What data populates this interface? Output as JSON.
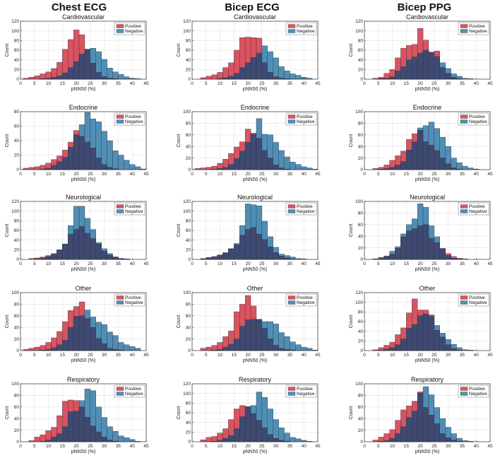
{
  "columns": [
    "Chest ECG",
    "Bicep ECG",
    "Bicep PPG"
  ],
  "colors": {
    "positive": "#d9545f",
    "negative": "#4f8fb5",
    "overlap": "#3e4a72",
    "edge": "#333344"
  },
  "chart_data": {
    "type": "histogram-grid",
    "xlabel": "pNN50 (%)",
    "ylabel": "Count",
    "legend": [
      "Positive",
      "Negative"
    ],
    "legend_position": "top-right",
    "xlim": [
      0,
      45
    ],
    "xticks": [
      0,
      5,
      10,
      15,
      20,
      25,
      30,
      35,
      40,
      45
    ],
    "bin_width": 2,
    "bin_starts": [
      1,
      3,
      5,
      7,
      9,
      11,
      13,
      15,
      17,
      19,
      21,
      23,
      25,
      27,
      29,
      31,
      33,
      35,
      37,
      39,
      41,
      43
    ],
    "panels": [
      {
        "column": "Chest ECG",
        "title": "Cardiovascular",
        "ylim": [
          0,
          120
        ],
        "yticks": [
          0,
          20,
          40,
          60,
          80,
          100,
          120
        ],
        "positive": [
          2,
          4,
          7,
          11,
          15,
          22,
          35,
          62,
          82,
          102,
          92,
          62,
          33,
          14,
          5,
          2,
          1,
          0,
          0,
          0,
          0,
          0
        ],
        "negative": [
          0,
          0,
          0,
          1,
          2,
          4,
          7,
          13,
          24,
          36,
          52,
          62,
          64,
          57,
          41,
          23,
          15,
          10,
          5,
          2,
          1,
          0
        ]
      },
      {
        "column": "Bicep ECG",
        "title": "Cardiovascular",
        "ylim": [
          0,
          120
        ],
        "yticks": [
          0,
          20,
          40,
          60,
          80,
          100,
          120
        ],
        "positive": [
          0,
          3,
          6,
          9,
          14,
          24,
          34,
          60,
          86,
          87,
          86,
          85,
          34,
          14,
          5,
          2,
          1,
          0,
          0,
          0,
          0,
          0
        ],
        "negative": [
          0,
          0,
          0,
          0,
          1,
          3,
          6,
          12,
          24,
          34,
          45,
          54,
          69,
          57,
          44,
          26,
          17,
          11,
          8,
          4,
          2,
          0
        ]
      },
      {
        "column": "Bicep PPG",
        "title": "Cardiovascular",
        "ylim": [
          0,
          120
        ],
        "yticks": [
          0,
          20,
          40,
          60,
          80,
          100,
          120
        ],
        "positive": [
          0,
          2,
          4,
          12,
          20,
          44,
          64,
          70,
          72,
          105,
          81,
          55,
          58,
          24,
          12,
          4,
          1,
          0,
          0,
          0,
          0,
          0
        ],
        "negative": [
          0,
          0,
          1,
          2,
          5,
          17,
          26,
          40,
          46,
          54,
          60,
          56,
          47,
          34,
          22,
          11,
          6,
          2,
          1,
          0,
          0,
          0
        ]
      },
      {
        "column": "Chest ECG",
        "title": "Endocrine",
        "ylim": [
          0,
          80
        ],
        "yticks": [
          0,
          20,
          40,
          60,
          80
        ],
        "positive": [
          2,
          3,
          4,
          6,
          9,
          14,
          19,
          27,
          38,
          54,
          46,
          38,
          30,
          16,
          7,
          3,
          1,
          0,
          0,
          0,
          0,
          0
        ],
        "negative": [
          0,
          0,
          0,
          1,
          2,
          6,
          11,
          17,
          31,
          48,
          62,
          79,
          70,
          66,
          53,
          40,
          26,
          20,
          13,
          7,
          4,
          1
        ]
      },
      {
        "column": "Bicep ECG",
        "title": "Endocrine",
        "ylim": [
          0,
          100
        ],
        "yticks": [
          0,
          20,
          40,
          60,
          80,
          100
        ],
        "positive": [
          2,
          3,
          4,
          6,
          11,
          18,
          28,
          39,
          48,
          70,
          63,
          54,
          33,
          20,
          8,
          3,
          1,
          0,
          0,
          0,
          0,
          0
        ],
        "negative": [
          0,
          0,
          0,
          1,
          2,
          4,
          9,
          19,
          32,
          47,
          61,
          88,
          61,
          60,
          47,
          33,
          22,
          13,
          9,
          5,
          3,
          1
        ]
      },
      {
        "column": "Bicep PPG",
        "title": "Endocrine",
        "ylim": [
          0,
          100
        ],
        "yticks": [
          0,
          20,
          40,
          60,
          80,
          100
        ],
        "positive": [
          0,
          2,
          4,
          8,
          16,
          24,
          32,
          52,
          62,
          68,
          48,
          42,
          33,
          20,
          10,
          3,
          1,
          0,
          0,
          0,
          0,
          0
        ],
        "negative": [
          0,
          0,
          1,
          2,
          4,
          8,
          14,
          34,
          48,
          72,
          76,
          82,
          71,
          56,
          40,
          20,
          12,
          6,
          3,
          1,
          0,
          0
        ]
      },
      {
        "column": "Chest ECG",
        "title": "Neurological",
        "ylim": [
          0,
          120
        ],
        "yticks": [
          0,
          20,
          40,
          60,
          80,
          100,
          120
        ],
        "positive": [
          0,
          2,
          3,
          5,
          8,
          12,
          19,
          31,
          52,
          62,
          68,
          54,
          43,
          32,
          17,
          9,
          5,
          2,
          1,
          0,
          0,
          0
        ],
        "negative": [
          0,
          0,
          1,
          3,
          6,
          11,
          20,
          32,
          70,
          110,
          110,
          85,
          62,
          35,
          22,
          12,
          5,
          2,
          1,
          0,
          0,
          0
        ]
      },
      {
        "column": "Bicep ECG",
        "title": "Neurological",
        "ylim": [
          0,
          120
        ],
        "yticks": [
          0,
          20,
          40,
          60,
          80,
          100,
          120
        ],
        "positive": [
          0,
          2,
          4,
          6,
          9,
          14,
          22,
          30,
          50,
          62,
          66,
          52,
          41,
          26,
          14,
          7,
          3,
          1,
          0,
          0,
          0,
          0
        ],
        "negative": [
          0,
          1,
          3,
          5,
          9,
          13,
          22,
          33,
          70,
          115,
          113,
          111,
          79,
          47,
          25,
          11,
          8,
          5,
          2,
          1,
          0,
          0
        ]
      },
      {
        "column": "Bicep PPG",
        "title": "Neurological",
        "ylim": [
          0,
          100
        ],
        "yticks": [
          0,
          20,
          40,
          60,
          80,
          100
        ],
        "positive": [
          0,
          1,
          3,
          6,
          9,
          19,
          39,
          49,
          53,
          58,
          60,
          36,
          29,
          19,
          10,
          5,
          2,
          1,
          0,
          0,
          0,
          0
        ],
        "negative": [
          0,
          1,
          3,
          5,
          14,
          22,
          44,
          60,
          70,
          96,
          90,
          58,
          39,
          18,
          7,
          2,
          1,
          0,
          0,
          0,
          0,
          0
        ]
      },
      {
        "column": "Chest ECG",
        "title": "Other",
        "ylim": [
          0,
          100
        ],
        "yticks": [
          0,
          20,
          40,
          60,
          80,
          100
        ],
        "positive": [
          2,
          4,
          6,
          9,
          14,
          22,
          33,
          50,
          69,
          76,
          84,
          55,
          40,
          21,
          12,
          4,
          2,
          1,
          0,
          0,
          0,
          0
        ],
        "negative": [
          0,
          0,
          0,
          1,
          2,
          5,
          10,
          18,
          40,
          59,
          60,
          70,
          58,
          49,
          45,
          32,
          26,
          14,
          10,
          7,
          4,
          0
        ]
      },
      {
        "column": "Bicep ECG",
        "title": "Other",
        "ylim": [
          0,
          100
        ],
        "yticks": [
          0,
          20,
          40,
          60,
          80,
          100
        ],
        "positive": [
          0,
          4,
          6,
          9,
          14,
          24,
          34,
          67,
          80,
          95,
          77,
          54,
          38,
          20,
          9,
          4,
          2,
          1,
          0,
          0,
          0,
          0
        ],
        "negative": [
          0,
          0,
          0,
          1,
          2,
          6,
          11,
          20,
          42,
          53,
          54,
          54,
          50,
          50,
          46,
          31,
          24,
          15,
          10,
          6,
          4,
          1
        ]
      },
      {
        "column": "Bicep PPG",
        "title": "Other",
        "ylim": [
          0,
          120
        ],
        "yticks": [
          0,
          20,
          40,
          60,
          80,
          100,
          120
        ],
        "positive": [
          0,
          2,
          6,
          11,
          17,
          33,
          47,
          78,
          107,
          84,
          84,
          74,
          42,
          28,
          12,
          4,
          1,
          0,
          0,
          0,
          0,
          0
        ],
        "negative": [
          0,
          0,
          1,
          3,
          6,
          12,
          24,
          46,
          54,
          72,
          76,
          71,
          52,
          36,
          23,
          13,
          6,
          2,
          1,
          0,
          0,
          0
        ]
      },
      {
        "column": "Chest ECG",
        "title": "Respiratory",
        "ylim": [
          0,
          100
        ],
        "yticks": [
          0,
          20,
          40,
          60,
          80,
          100
        ],
        "positive": [
          0,
          2,
          8,
          12,
          19,
          25,
          45,
          70,
          72,
          71,
          60,
          42,
          27,
          17,
          8,
          3,
          1,
          0,
          0,
          0,
          0,
          0
        ],
        "negative": [
          0,
          0,
          0,
          1,
          3,
          8,
          14,
          26,
          52,
          53,
          71,
          91,
          88,
          60,
          42,
          26,
          18,
          10,
          7,
          4,
          1,
          0
        ]
      },
      {
        "column": "Bicep ECG",
        "title": "Respiratory",
        "ylim": [
          0,
          120
        ],
        "yticks": [
          0,
          20,
          40,
          60,
          80,
          100,
          120
        ],
        "positive": [
          0,
          4,
          9,
          11,
          18,
          27,
          46,
          68,
          75,
          73,
          58,
          44,
          29,
          15,
          7,
          3,
          1,
          0,
          0,
          0,
          0,
          0
        ],
        "negative": [
          0,
          0,
          0,
          1,
          3,
          7,
          13,
          27,
          52,
          72,
          75,
          103,
          92,
          68,
          46,
          29,
          18,
          9,
          6,
          3,
          1,
          0
        ]
      },
      {
        "column": "Bicep PPG",
        "title": "Respiratory",
        "ylim": [
          0,
          100
        ],
        "yticks": [
          0,
          20,
          40,
          60,
          80,
          100
        ],
        "positive": [
          0,
          3,
          8,
          14,
          21,
          37,
          55,
          62,
          70,
          86,
          59,
          46,
          31,
          14,
          7,
          3,
          1,
          0,
          0,
          0,
          0,
          0
        ],
        "negative": [
          0,
          0,
          1,
          2,
          6,
          14,
          26,
          42,
          53,
          84,
          95,
          81,
          59,
          40,
          25,
          14,
          6,
          2,
          1,
          0,
          0,
          0
        ]
      }
    ]
  }
}
